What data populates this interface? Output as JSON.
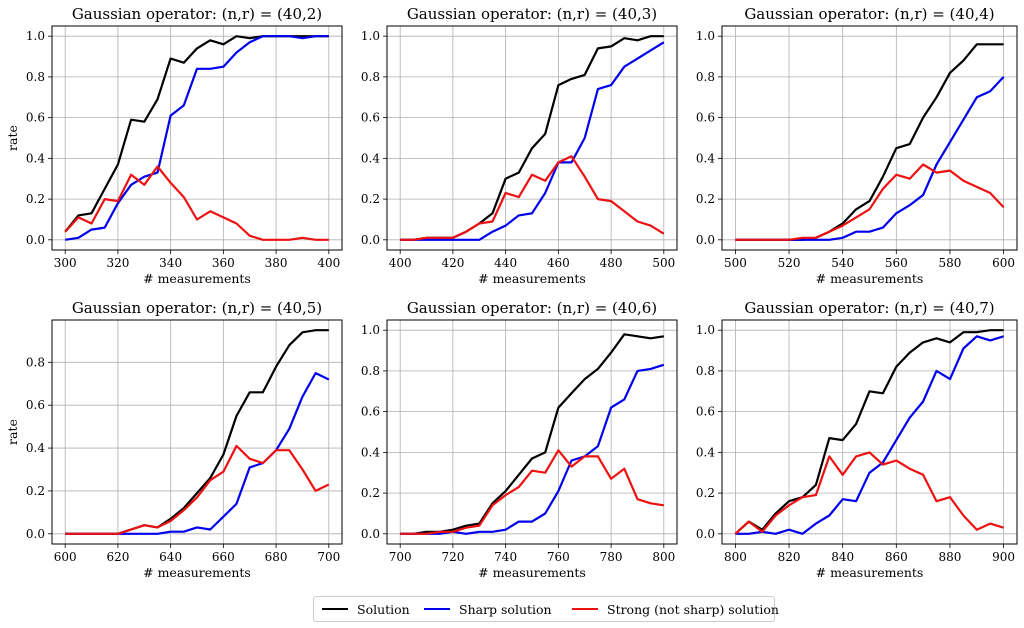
{
  "colors": {
    "Solution": "#000000",
    "Sharp solution": "#0000ee",
    "Strong (not sharp) solution": "#ee1111",
    "grid": "#b0b0b0"
  },
  "legend": [
    {
      "label": "Solution",
      "color": "#000000"
    },
    {
      "label": "Sharp solution",
      "color": "#0000ee"
    },
    {
      "label": "Strong (not sharp) solution",
      "color": "#ee1111"
    }
  ],
  "chart_data": [
    {
      "type": "line",
      "title": "Gaussian operator: (n,r) = (40,2)",
      "xlabel": "# measurements",
      "ylabel": "rate",
      "xlim": [
        300,
        400
      ],
      "ylim": [
        0,
        1.0
      ],
      "xticks": [
        "300",
        "320",
        "340",
        "360",
        "380",
        "400"
      ],
      "yticks": [
        "0.0",
        "0.2",
        "0.4",
        "0.6",
        "0.8",
        "1.0"
      ],
      "x": [
        300,
        305,
        310,
        315,
        320,
        325,
        330,
        335,
        340,
        345,
        350,
        355,
        360,
        365,
        370,
        375,
        380,
        385,
        390,
        395,
        400
      ],
      "series": [
        {
          "name": "Solution",
          "values": [
            0.04,
            0.12,
            0.13,
            0.25,
            0.37,
            0.59,
            0.58,
            0.69,
            0.89,
            0.87,
            0.94,
            0.98,
            0.96,
            1.0,
            0.99,
            1.0,
            1.0,
            1.0,
            1.0,
            1.0,
            1.0
          ]
        },
        {
          "name": "Sharp solution",
          "values": [
            0.0,
            0.01,
            0.05,
            0.06,
            0.18,
            0.27,
            0.31,
            0.33,
            0.61,
            0.66,
            0.84,
            0.84,
            0.85,
            0.92,
            0.97,
            1.0,
            1.0,
            1.0,
            0.99,
            1.0,
            1.0
          ]
        },
        {
          "name": "Strong (not sharp) solution",
          "values": [
            0.04,
            0.11,
            0.08,
            0.2,
            0.19,
            0.32,
            0.27,
            0.36,
            0.28,
            0.21,
            0.1,
            0.14,
            0.11,
            0.08,
            0.02,
            0.0,
            0.0,
            0.0,
            0.01,
            0.0,
            0.0
          ]
        }
      ]
    },
    {
      "type": "line",
      "title": "Gaussian operator: (n,r) = (40,3)",
      "xlabel": "# measurements",
      "ylabel": "",
      "xlim": [
        400,
        500
      ],
      "ylim": [
        0,
        1.0
      ],
      "xticks": [
        "400",
        "420",
        "440",
        "460",
        "480",
        "500"
      ],
      "yticks": [
        "0.0",
        "0.2",
        "0.4",
        "0.6",
        "0.8",
        "1.0"
      ],
      "x": [
        400,
        405,
        410,
        415,
        420,
        425,
        430,
        435,
        440,
        445,
        450,
        455,
        460,
        465,
        470,
        475,
        480,
        485,
        490,
        495,
        500
      ],
      "series": [
        {
          "name": "Solution",
          "values": [
            0.0,
            0.0,
            0.01,
            0.01,
            0.01,
            0.04,
            0.08,
            0.13,
            0.3,
            0.33,
            0.45,
            0.52,
            0.76,
            0.79,
            0.81,
            0.94,
            0.95,
            0.99,
            0.98,
            1.0,
            1.0
          ]
        },
        {
          "name": "Sharp solution",
          "values": [
            0.0,
            0.0,
            0.0,
            0.0,
            0.0,
            0.0,
            0.0,
            0.04,
            0.07,
            0.12,
            0.13,
            0.23,
            0.38,
            0.38,
            0.5,
            0.74,
            0.76,
            0.85,
            0.89,
            0.93,
            0.97
          ]
        },
        {
          "name": "Strong (not sharp) solution",
          "values": [
            0.0,
            0.0,
            0.01,
            0.01,
            0.01,
            0.04,
            0.08,
            0.09,
            0.23,
            0.21,
            0.32,
            0.29,
            0.38,
            0.41,
            0.31,
            0.2,
            0.19,
            0.14,
            0.09,
            0.07,
            0.03
          ]
        }
      ]
    },
    {
      "type": "line",
      "title": "Gaussian operator: (n,r) = (40,4)",
      "xlabel": "# measurements",
      "ylabel": "",
      "xlim": [
        500,
        600
      ],
      "ylim": [
        0,
        1.0
      ],
      "xticks": [
        "500",
        "520",
        "540",
        "560",
        "580",
        "600"
      ],
      "yticks": [
        "0.0",
        "0.2",
        "0.4",
        "0.6",
        "0.8",
        "1.0"
      ],
      "x": [
        500,
        505,
        510,
        515,
        520,
        525,
        530,
        535,
        540,
        545,
        550,
        555,
        560,
        565,
        570,
        575,
        580,
        585,
        590,
        595,
        600
      ],
      "series": [
        {
          "name": "Solution",
          "values": [
            0.0,
            0.0,
            0.0,
            0.0,
            0.0,
            0.0,
            0.01,
            0.04,
            0.08,
            0.15,
            0.19,
            0.31,
            0.45,
            0.47,
            0.6,
            0.7,
            0.82,
            0.88,
            0.96,
            0.96,
            0.96
          ]
        },
        {
          "name": "Sharp solution",
          "values": [
            0.0,
            0.0,
            0.0,
            0.0,
            0.0,
            0.0,
            0.0,
            0.0,
            0.01,
            0.04,
            0.04,
            0.06,
            0.13,
            0.17,
            0.22,
            0.37,
            0.48,
            0.59,
            0.7,
            0.73,
            0.8
          ]
        },
        {
          "name": "Strong (not sharp) solution",
          "values": [
            0.0,
            0.0,
            0.0,
            0.0,
            0.0,
            0.01,
            0.01,
            0.04,
            0.07,
            0.11,
            0.15,
            0.25,
            0.32,
            0.3,
            0.37,
            0.33,
            0.34,
            0.29,
            0.26,
            0.23,
            0.16
          ]
        }
      ]
    },
    {
      "type": "line",
      "title": "Gaussian operator: (n,r) = (40,5)",
      "xlabel": "# measurements",
      "ylabel": "rate",
      "xlim": [
        600,
        700
      ],
      "ylim": [
        0,
        0.95
      ],
      "xticks": [
        "600",
        "620",
        "640",
        "660",
        "680",
        "700"
      ],
      "yticks": [
        "0.0",
        "0.2",
        "0.4",
        "0.6",
        "0.8"
      ],
      "x": [
        600,
        605,
        610,
        615,
        620,
        625,
        630,
        635,
        640,
        645,
        650,
        655,
        660,
        665,
        670,
        675,
        680,
        685,
        690,
        695,
        700
      ],
      "series": [
        {
          "name": "Solution",
          "values": [
            0.0,
            0.0,
            0.0,
            0.0,
            0.0,
            0.02,
            0.04,
            0.03,
            0.07,
            0.12,
            0.19,
            0.26,
            0.37,
            0.55,
            0.66,
            0.66,
            0.78,
            0.88,
            0.94,
            0.95,
            0.95
          ]
        },
        {
          "name": "Sharp solution",
          "values": [
            0.0,
            0.0,
            0.0,
            0.0,
            0.0,
            0.0,
            0.0,
            0.0,
            0.01,
            0.01,
            0.03,
            0.02,
            0.08,
            0.14,
            0.31,
            0.33,
            0.39,
            0.49,
            0.64,
            0.75,
            0.72
          ]
        },
        {
          "name": "Strong (not sharp) solution",
          "values": [
            0.0,
            0.0,
            0.0,
            0.0,
            0.0,
            0.02,
            0.04,
            0.03,
            0.06,
            0.11,
            0.17,
            0.25,
            0.29,
            0.41,
            0.35,
            0.33,
            0.39,
            0.39,
            0.3,
            0.2,
            0.23
          ]
        }
      ]
    },
    {
      "type": "line",
      "title": "Gaussian operator: (n,r) = (40,6)",
      "xlabel": "# measurements",
      "ylabel": "",
      "xlim": [
        700,
        800
      ],
      "ylim": [
        0,
        1.0
      ],
      "xticks": [
        "700",
        "720",
        "740",
        "760",
        "780",
        "800"
      ],
      "yticks": [
        "0.0",
        "0.2",
        "0.4",
        "0.6",
        "0.8",
        "1.0"
      ],
      "x": [
        700,
        705,
        710,
        715,
        720,
        725,
        730,
        735,
        740,
        745,
        750,
        755,
        760,
        765,
        770,
        775,
        780,
        785,
        790,
        795,
        800
      ],
      "series": [
        {
          "name": "Solution",
          "values": [
            0.0,
            0.0,
            0.01,
            0.01,
            0.02,
            0.04,
            0.05,
            0.15,
            0.21,
            0.29,
            0.37,
            0.4,
            0.62,
            0.69,
            0.76,
            0.81,
            0.89,
            0.98,
            0.97,
            0.96,
            0.97
          ]
        },
        {
          "name": "Sharp solution",
          "values": [
            0.0,
            0.0,
            0.0,
            0.0,
            0.01,
            0.0,
            0.01,
            0.01,
            0.02,
            0.06,
            0.06,
            0.1,
            0.21,
            0.36,
            0.38,
            0.43,
            0.62,
            0.66,
            0.8,
            0.81,
            0.83
          ]
        },
        {
          "name": "Strong (not sharp) solution",
          "values": [
            0.0,
            0.0,
            0.0,
            0.01,
            0.01,
            0.03,
            0.04,
            0.14,
            0.19,
            0.23,
            0.31,
            0.3,
            0.41,
            0.33,
            0.38,
            0.38,
            0.27,
            0.32,
            0.17,
            0.15,
            0.14
          ]
        }
      ]
    },
    {
      "type": "line",
      "title": "Gaussian operator: (n,r) = (40,7)",
      "xlabel": "# measurements",
      "ylabel": "",
      "xlim": [
        800,
        900
      ],
      "ylim": [
        0,
        1.0
      ],
      "xticks": [
        "800",
        "820",
        "840",
        "860",
        "880",
        "900"
      ],
      "yticks": [
        "0.0",
        "0.2",
        "0.4",
        "0.6",
        "0.8",
        "1.0"
      ],
      "x": [
        800,
        805,
        810,
        815,
        820,
        825,
        830,
        835,
        840,
        845,
        850,
        855,
        860,
        865,
        870,
        875,
        880,
        885,
        890,
        895,
        900
      ],
      "series": [
        {
          "name": "Solution",
          "values": [
            0.0,
            0.06,
            0.02,
            0.1,
            0.16,
            0.18,
            0.24,
            0.47,
            0.46,
            0.54,
            0.7,
            0.69,
            0.82,
            0.89,
            0.94,
            0.96,
            0.94,
            0.99,
            0.99,
            1.0,
            1.0
          ]
        },
        {
          "name": "Sharp solution",
          "values": [
            0.0,
            0.0,
            0.01,
            0.0,
            0.02,
            0.0,
            0.05,
            0.09,
            0.17,
            0.16,
            0.3,
            0.35,
            0.46,
            0.57,
            0.65,
            0.8,
            0.76,
            0.91,
            0.97,
            0.95,
            0.97
          ]
        },
        {
          "name": "Strong (not sharp) solution",
          "values": [
            0.0,
            0.06,
            0.01,
            0.09,
            0.14,
            0.18,
            0.19,
            0.38,
            0.29,
            0.38,
            0.4,
            0.34,
            0.36,
            0.32,
            0.29,
            0.16,
            0.18,
            0.09,
            0.02,
            0.05,
            0.03
          ]
        }
      ]
    }
  ]
}
